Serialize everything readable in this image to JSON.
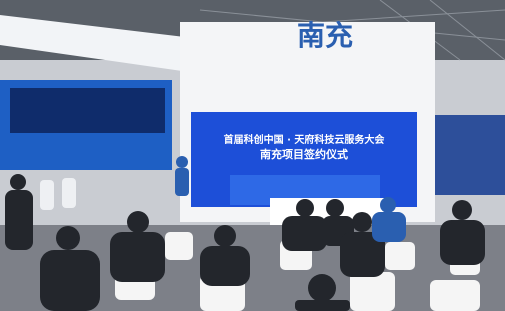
{
  "screen": {
    "line1": "首届科创中国 · 天府科技云服务大会",
    "line2": "南充项目签约仪式"
  },
  "sign": "南充"
}
